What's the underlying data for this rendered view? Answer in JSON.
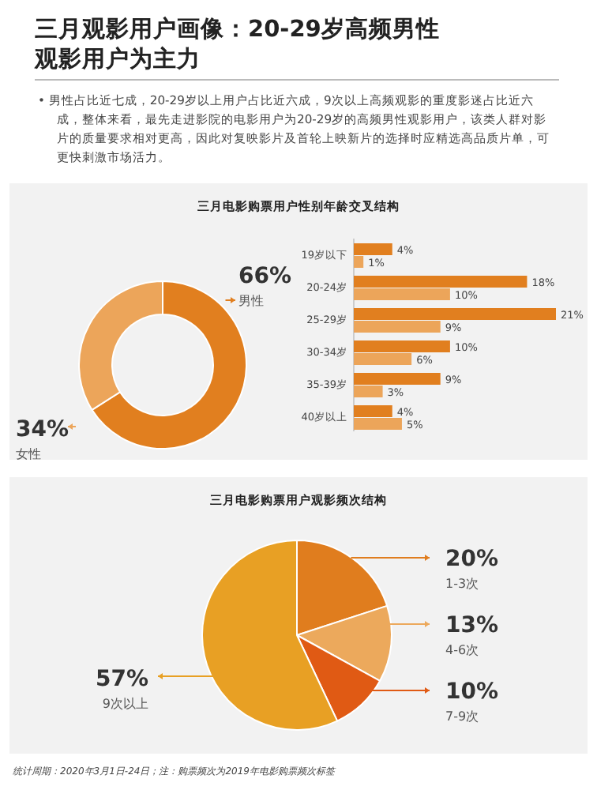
{
  "chart_data": [
    {
      "type": "other",
      "title": "三月观影用户画像：20-29岁高频男性观影用户为主力",
      "annotations": [
        "• 男性占比近七成，20-29岁以上用户占比近六成，9次以上高频观影的重度影迷占比近六成，整体来看，最先走进影院的电影用户为20-29岁的高频男性观影用户，该类人群对影片的质量要求相对更高，因此对复映影片及首轮上映新片的选择时应精选高品质片单，可更快刺激市场活力。"
      ]
    },
    {
      "type": "donut",
      "title": "三月电影购票用户性别年龄交叉结构",
      "categories": [
        "男性",
        "女性"
      ],
      "values": [
        66,
        34
      ],
      "value_labels": [
        "66%",
        "34%"
      ],
      "colors": [
        "#e17f1f",
        "#eca55a"
      ]
    },
    {
      "type": "bar",
      "orientation": "horizontal",
      "categories": [
        "19岁以下",
        "20-24岁",
        "25-29岁",
        "30-34岁",
        "35-39岁",
        "40岁以上"
      ],
      "series": [
        {
          "color": "#e17f1f",
          "values": [
            4,
            18,
            21,
            10,
            9,
            4
          ],
          "value_labels": [
            "4%",
            "18%",
            "21%",
            "10%",
            "9%",
            "4%"
          ]
        },
        {
          "color": "#eca55a",
          "values": [
            1,
            10,
            9,
            6,
            3,
            5
          ],
          "value_labels": [
            "1%",
            "10%",
            "9%",
            "6%",
            "3%",
            "5%"
          ]
        }
      ]
    },
    {
      "type": "pie",
      "title": "三月电影购票用户观影频次结构",
      "categories": [
        "1-3次",
        "4-6次",
        "7-9次",
        "9次以上"
      ],
      "values": [
        20,
        13,
        10,
        57
      ],
      "value_labels": [
        "20%",
        "13%",
        "10%",
        "57%"
      ],
      "colors": [
        "#e07d1e",
        "#eca95c",
        "#e05a14",
        "#e8a024"
      ],
      "annotations": [
        "统计周期：2020年3月1日-24日；注：购票频次为2019年电影购票频次标签"
      ]
    }
  ]
}
